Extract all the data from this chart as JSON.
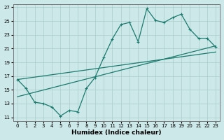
{
  "xlabel": "Humidex (Indice chaleur)",
  "bg_color": "#cce8e8",
  "grid_color": "#aacccc",
  "line_color": "#1a7a6e",
  "x_ticks": [
    0,
    1,
    2,
    3,
    4,
    5,
    6,
    7,
    8,
    9,
    10,
    11,
    12,
    13,
    14,
    15,
    16,
    17,
    18,
    19,
    20,
    21,
    22,
    23
  ],
  "y_ticks": [
    11,
    13,
    15,
    17,
    19,
    21,
    23,
    25,
    27
  ],
  "xlim": [
    -0.5,
    23.5
  ],
  "ylim": [
    10.5,
    27.5
  ],
  "jagged_x": [
    0,
    1,
    2,
    3,
    4,
    5,
    6,
    7,
    8,
    9,
    10,
    11,
    12,
    13,
    14,
    15,
    16,
    17,
    18,
    19,
    20,
    21,
    22,
    23
  ],
  "jagged_y": [
    16.5,
    15.2,
    13.2,
    13.0,
    12.5,
    11.2,
    12.0,
    11.8,
    15.2,
    16.8,
    19.7,
    22.4,
    24.5,
    24.8,
    22.0,
    26.8,
    25.1,
    24.8,
    25.5,
    26.0,
    23.8,
    22.5,
    22.5,
    21.2
  ],
  "trend1_x": [
    0,
    23
  ],
  "trend1_y": [
    14.0,
    21.4
  ],
  "trend2_x": [
    0,
    23
  ],
  "trend2_y": [
    16.5,
    20.5
  ]
}
